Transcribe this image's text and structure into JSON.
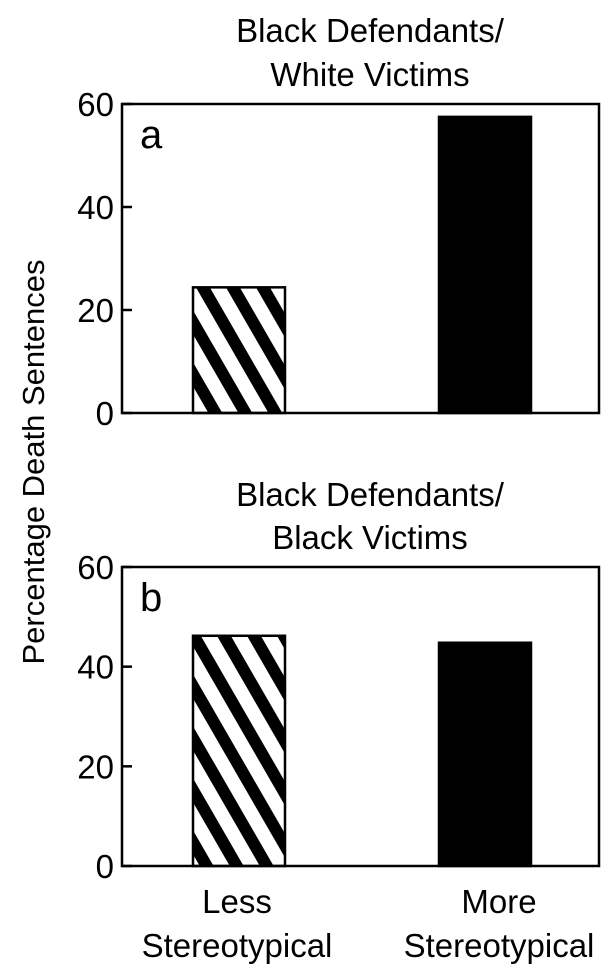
{
  "chart_data": {
    "type": "bar",
    "ylabel": "Percentage Death Sentences",
    "categories": [
      [
        "Less",
        "Stereotypical"
      ],
      [
        "More",
        "Stereotypical"
      ]
    ],
    "patterns": {
      "Less Stereotypical": "diagonal-hatch",
      "More Stereotypical": "solid-black"
    },
    "panels": [
      {
        "label": "a",
        "title": [
          "Black Defendants/",
          "White Victims"
        ],
        "ylim": [
          0,
          60
        ],
        "yticks": [
          0,
          20,
          40,
          60
        ],
        "values": [
          24.4,
          57.5
        ]
      },
      {
        "label": "b",
        "title": [
          "Black Defendants/",
          "Black Victims"
        ],
        "ylim": [
          0,
          60
        ],
        "yticks": [
          0,
          20,
          40,
          60
        ],
        "values": [
          46.2,
          44.8
        ]
      }
    ],
    "grid": false,
    "legend": "none"
  }
}
